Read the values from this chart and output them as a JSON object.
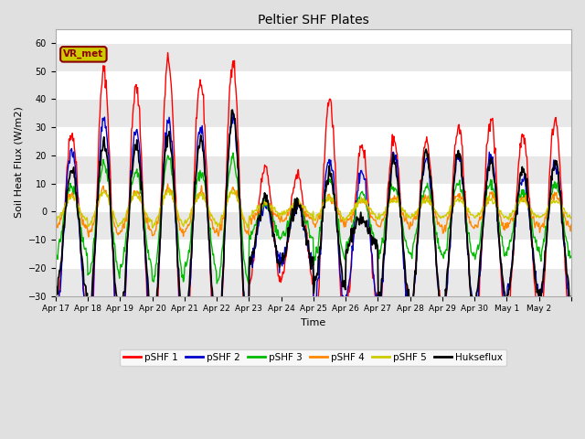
{
  "title": "Peltier SHF Plates",
  "xlabel": "Time",
  "ylabel": "Soil Heat Flux (W/m2)",
  "ylim": [
    -30,
    65
  ],
  "yticks": [
    -30,
    -20,
    -10,
    0,
    10,
    20,
    30,
    40,
    50,
    60
  ],
  "fig_bg": "#e0e0e0",
  "plot_bg": "#ffffff",
  "legend_labels": [
    "pSHF 1",
    "pSHF 2",
    "pSHF 3",
    "pSHF 4",
    "pSHF 5",
    "Hukseflux"
  ],
  "legend_colors": [
    "#ff0000",
    "#0000cc",
    "#00bb00",
    "#ff8800",
    "#cccc00",
    "#000000"
  ],
  "vr_met_box_color": "#cccc00",
  "vr_met_border_color": "#8b0000",
  "annotation": "VR_met",
  "xtick_labels": [
    "Apr 17",
    "Apr 18",
    "Apr 19",
    "Apr 20",
    "Apr 21",
    "Apr 22",
    "Apr 23",
    "Apr 24",
    "Apr 25",
    "Apr 26",
    "Apr 27",
    "Apr 28",
    "Apr 29",
    "Apr 30",
    "May 1",
    "May 2"
  ],
  "n_days": 16,
  "seed": 42,
  "pSHF1_amps": [
    33,
    55,
    49,
    59,
    51,
    59,
    20,
    18,
    45,
    29,
    31,
    30,
    35,
    38,
    32,
    38
  ],
  "pSHF1_base": -5,
  "pSHF2_amps": [
    30,
    41,
    36,
    41,
    38,
    42,
    10,
    10,
    27,
    22,
    28,
    27,
    28,
    27,
    20,
    25
  ],
  "pSHF2_base": -8,
  "pSHF3_amps": [
    12,
    20,
    17,
    22,
    17,
    22,
    6,
    6,
    14,
    9,
    12,
    12,
    13,
    13,
    10,
    13
  ],
  "pSHF3_base": -3,
  "pSHF4_amps": [
    6,
    8,
    7,
    8,
    7,
    8,
    3,
    3,
    5,
    4,
    5,
    5,
    6,
    6,
    5,
    6
  ],
  "pSHF4_base": 0,
  "pSHF5_amps": [
    4,
    6,
    5,
    6,
    5,
    6,
    2,
    2,
    4,
    3,
    3,
    3,
    3,
    3,
    3,
    3
  ],
  "pSHF5_base": 1,
  "Huks_amps": [
    22,
    32,
    30,
    35,
    32,
    42,
    12,
    11,
    20,
    5,
    25,
    28,
    28,
    25,
    22,
    24
  ],
  "Huks_base": -7
}
